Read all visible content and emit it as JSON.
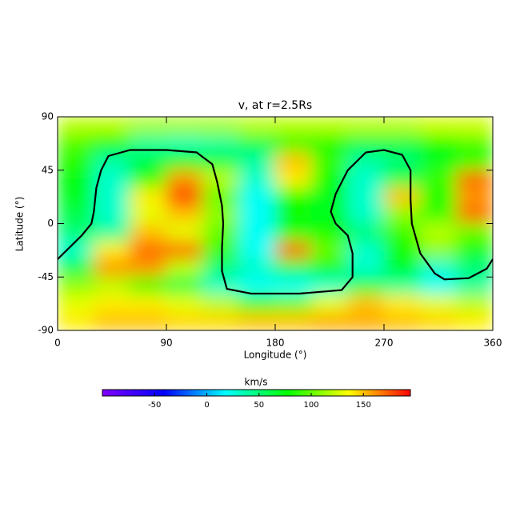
{
  "chart_data": {
    "type": "heatmap",
    "title": "v, at r=2.5Rs",
    "xlabel": "Longitude (°)",
    "ylabel": "Latitude (°)",
    "xlim": [
      0,
      360
    ],
    "ylim": [
      -90,
      90
    ],
    "xticks": [
      0,
      90,
      180,
      270,
      360
    ],
    "yticks": [
      -90,
      -45,
      0,
      45,
      90
    ],
    "x": [
      15,
      45,
      75,
      105,
      135,
      165,
      195,
      225,
      255,
      285,
      315,
      345
    ],
    "y": [
      82.5,
      67.5,
      52.5,
      37.5,
      22.5,
      7.5,
      -7.5,
      -22.5,
      -37.5,
      -52.5,
      -67.5,
      -82.5
    ],
    "z": [
      [
        120,
        120,
        115,
        115,
        115,
        120,
        120,
        120,
        120,
        120,
        125,
        125
      ],
      [
        95,
        80,
        40,
        35,
        40,
        60,
        80,
        80,
        60,
        60,
        80,
        95
      ],
      [
        85,
        40,
        60,
        70,
        60,
        40,
        150,
        90,
        40,
        50,
        70,
        80
      ],
      [
        75,
        30,
        80,
        160,
        120,
        30,
        140,
        80,
        30,
        60,
        90,
        170
      ],
      [
        70,
        30,
        140,
        180,
        100,
        20,
        80,
        70,
        30,
        150,
        80,
        160
      ],
      [
        60,
        30,
        130,
        150,
        110,
        20,
        80,
        70,
        30,
        110,
        90,
        170
      ],
      [
        50,
        40,
        150,
        130,
        100,
        20,
        70,
        80,
        50,
        90,
        120,
        100
      ],
      [
        30,
        140,
        170,
        170,
        90,
        20,
        170,
        100,
        30,
        80,
        110,
        80
      ],
      [
        60,
        160,
        160,
        120,
        50,
        30,
        60,
        80,
        30,
        70,
        30,
        50
      ],
      [
        110,
        120,
        90,
        60,
        30,
        20,
        20,
        30,
        60,
        40,
        20,
        40
      ],
      [
        130,
        140,
        140,
        130,
        120,
        90,
        100,
        130,
        150,
        140,
        130,
        120
      ],
      [
        140,
        150,
        150,
        145,
        145,
        150,
        150,
        155,
        155,
        150,
        145,
        140
      ]
    ],
    "colormap": [
      "#8000ff",
      "#0000ff",
      "#00ffff",
      "#00ff00",
      "#ffff00",
      "#ff0000"
    ],
    "clim": [
      -100,
      195
    ],
    "colorbar_label": "km/s",
    "colorbar_ticks": [
      -50,
      0,
      50,
      100,
      150
    ],
    "line": {
      "color": "#000000",
      "x": [
        0,
        10,
        20,
        28,
        30,
        32,
        36,
        42,
        60,
        90,
        115,
        128,
        132,
        136,
        137,
        136,
        136,
        140,
        160,
        200,
        235,
        244,
        244,
        240,
        230,
        226,
        230,
        240,
        255,
        270,
        285,
        292,
        292,
        293,
        300,
        312,
        320,
        340,
        355,
        360
      ],
      "y": [
        -30,
        -20,
        -10,
        0,
        10,
        30,
        45,
        57,
        62,
        62,
        60,
        50,
        35,
        15,
        0,
        -20,
        -40,
        -55,
        -59,
        -59,
        -56,
        -45,
        -25,
        -10,
        0,
        10,
        25,
        45,
        60,
        62,
        58,
        45,
        20,
        0,
        -25,
        -42,
        -47,
        -46,
        -38,
        -30
      ]
    }
  }
}
